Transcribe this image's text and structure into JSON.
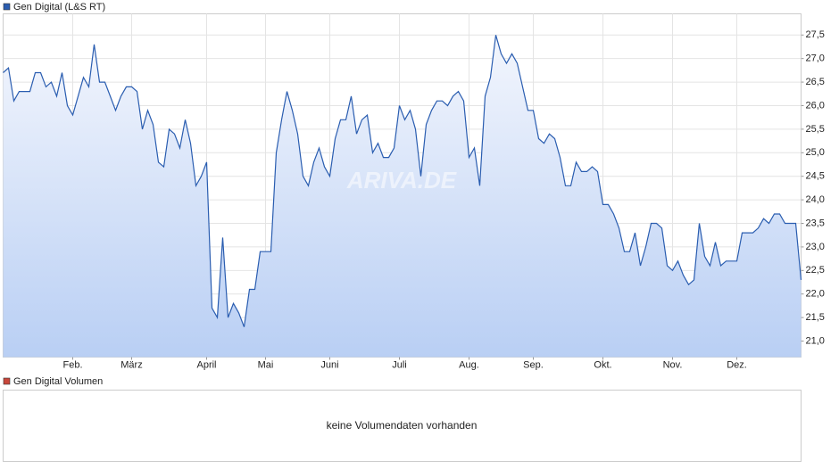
{
  "chart_data": {
    "type": "line",
    "watermark": "ARIVA.DE",
    "categories": [
      null,
      null,
      null,
      null,
      null,
      null,
      null,
      null,
      null,
      null,
      null,
      null,
      null,
      "Feb.",
      null,
      null,
      null,
      null,
      null,
      null,
      null,
      null,
      null,
      null,
      "März",
      null,
      null,
      null,
      null,
      null,
      null,
      null,
      null,
      null,
      null,
      null,
      null,
      null,
      "April",
      null,
      null,
      null,
      null,
      null,
      null,
      null,
      null,
      null,
      null,
      "Mai",
      null,
      null,
      null,
      null,
      null,
      null,
      null,
      null,
      null,
      null,
      null,
      "Juni",
      null,
      null,
      null,
      null,
      null,
      null,
      null,
      null,
      null,
      null,
      null,
      null,
      "Juli",
      null,
      null,
      null,
      null,
      null,
      null,
      null,
      null,
      null,
      null,
      null,
      null,
      "Aug.",
      null,
      null,
      null,
      null,
      null,
      null,
      null,
      null,
      null,
      null,
      null,
      "Sep.",
      null,
      null,
      null,
      null,
      null,
      null,
      null,
      null,
      null,
      null,
      null,
      null,
      "Okt.",
      null,
      null,
      null,
      null,
      null,
      null,
      null,
      null,
      null,
      null,
      null,
      null,
      "Nov.",
      null,
      null,
      null,
      null,
      null,
      null,
      null,
      null,
      null,
      null,
      null,
      "Dez.",
      null,
      null,
      null,
      null,
      null,
      null,
      null,
      null,
      null,
      null,
      null,
      null
    ],
    "series": [
      {
        "name": "Gen Digital (L&S RT)",
        "color": "#2a5db0",
        "values": [
          26.7,
          26.8,
          26.1,
          26.3,
          26.3,
          26.3,
          26.7,
          26.7,
          26.4,
          26.5,
          26.2,
          26.7,
          26.0,
          25.8,
          26.2,
          26.6,
          26.4,
          27.3,
          26.5,
          26.5,
          26.2,
          25.9,
          26.2,
          26.4,
          26.4,
          26.3,
          25.5,
          25.9,
          25.6,
          24.8,
          24.7,
          25.5,
          25.4,
          25.1,
          25.7,
          25.2,
          24.3,
          24.5,
          24.8,
          21.7,
          21.5,
          23.2,
          21.5,
          21.8,
          21.6,
          21.3,
          22.1,
          22.1,
          22.9,
          22.9,
          22.9,
          25.0,
          25.7,
          26.3,
          25.9,
          25.4,
          24.5,
          24.3,
          24.8,
          25.1,
          24.7,
          24.5,
          25.3,
          25.7,
          25.7,
          26.2,
          25.4,
          25.7,
          25.8,
          25.0,
          25.2,
          24.9,
          24.9,
          25.1,
          26.0,
          25.7,
          25.9,
          25.5,
          24.5,
          25.6,
          25.9,
          26.1,
          26.1,
          26.0,
          26.2,
          26.3,
          26.1,
          24.9,
          25.1,
          24.3,
          26.2,
          26.6,
          27.5,
          27.1,
          26.9,
          27.1,
          26.9,
          26.4,
          25.9,
          25.9,
          25.3,
          25.2,
          25.4,
          25.3,
          24.9,
          24.3,
          24.3,
          24.8,
          24.6,
          24.6,
          24.7,
          24.6,
          23.9,
          23.9,
          23.7,
          23.4,
          22.9,
          22.9,
          23.3,
          22.6,
          23.0,
          23.5,
          23.5,
          23.4,
          22.6,
          22.5,
          22.7,
          22.4,
          22.2,
          22.3,
          23.5,
          22.8,
          22.6,
          23.1,
          22.6,
          22.7,
          22.7,
          22.7,
          23.3,
          23.3,
          23.3,
          23.4,
          23.6,
          23.5,
          23.7,
          23.7,
          23.5,
          23.5,
          23.5,
          22.3
        ]
      }
    ],
    "ylim": [
      20.66,
      27.95
    ],
    "yticks": [
      {
        "value": 21.0,
        "label": "21,0"
      },
      {
        "value": 21.5,
        "label": "21,5"
      },
      {
        "value": 22.0,
        "label": "22,0"
      },
      {
        "value": 22.5,
        "label": "22,5"
      },
      {
        "value": 23.0,
        "label": "23,0"
      },
      {
        "value": 23.5,
        "label": "23,5"
      },
      {
        "value": 24.0,
        "label": "24,0"
      },
      {
        "value": 24.5,
        "label": "24,5"
      },
      {
        "value": 25.0,
        "label": "25,0"
      },
      {
        "value": 25.5,
        "label": "25,5"
      },
      {
        "value": 26.0,
        "label": "26,0"
      },
      {
        "value": 26.5,
        "label": "26,5"
      },
      {
        "value": 27.0,
        "label": "27,0"
      },
      {
        "value": 27.5,
        "label": "27,5"
      }
    ],
    "grid": true
  },
  "volume_panel": {
    "legend": "Gen Digital Volumen",
    "color": "#c9473b",
    "message": "keine Volumendaten vorhanden"
  }
}
